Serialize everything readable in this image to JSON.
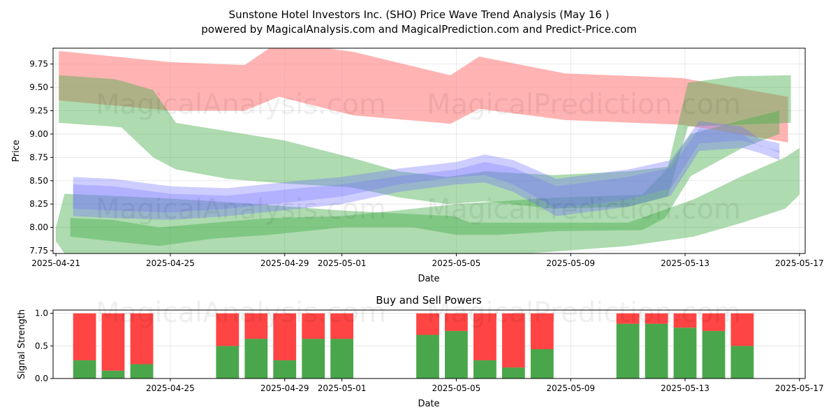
{
  "title_line1": "Sunstone Hotel Investors Inc. (SHO) Price Wave Trend Analysis (May 16 )",
  "title_line2": "powered by MagicalAnalysis.com and MagicalPrediction.com and Predict-Price.com",
  "watermarks": [
    "MagicalAnalysis.com",
    "MagicalPrediction.com"
  ],
  "colors": {
    "red": "#ff8080",
    "green": "#4caf50",
    "blue": "#7070ff",
    "bar_red": "#ff4444",
    "bar_green": "#4aa64a"
  },
  "chart_data": [
    {
      "type": "area",
      "title": "",
      "xlabel": "Date",
      "ylabel": "Price",
      "ylim": [
        7.72,
        9.92
      ],
      "xlim": [
        "2025-04-21",
        "2025-05-17"
      ],
      "yticks": [
        "7.75",
        "8.00",
        "8.25",
        "8.50",
        "8.75",
        "9.00",
        "9.25",
        "9.50",
        "9.75"
      ],
      "xticks": [
        "2025-04-21",
        "2025-04-25",
        "2025-04-29",
        "2025-05-01",
        "2025-05-05",
        "2025-05-09",
        "2025-05-13",
        "2025-05-17"
      ],
      "grid": true,
      "series": [
        {
          "name": "red-band",
          "color": "red",
          "x": [
            0.1,
            4,
            6.6,
            7.8,
            10.4,
            13.8,
            14.8,
            17.8,
            21.9,
            25.6
          ],
          "upper": [
            9.89,
            9.77,
            9.74,
            9.99,
            9.88,
            9.63,
            9.83,
            9.65,
            9.6,
            9.4
          ],
          "lower": [
            9.36,
            9.25,
            9.25,
            9.4,
            9.2,
            9.11,
            9.27,
            9.15,
            9.1,
            8.91
          ]
        },
        {
          "name": "green-band-1",
          "color": "green",
          "x": [
            0.1,
            2.0,
            2.3,
            3.4,
            4.2,
            6.0,
            8.0,
            10.3,
            12.0,
            13.7,
            15.0,
            17.4,
            20.0,
            21.4,
            22.1,
            23.8,
            25.7
          ],
          "upper": [
            9.63,
            9.59,
            9.57,
            9.47,
            9.12,
            9.03,
            8.93,
            8.75,
            8.6,
            8.54,
            8.6,
            8.56,
            8.6,
            8.65,
            9.55,
            9.62,
            9.63
          ],
          "lower": [
            9.12,
            9.08,
            9.07,
            8.75,
            8.62,
            8.52,
            8.47,
            8.43,
            8.32,
            8.25,
            8.28,
            8.2,
            8.22,
            8.33,
            9.08,
            9.1,
            9.12
          ]
        },
        {
          "name": "green-band-2",
          "color": "green",
          "x": [
            0.5,
            2.0,
            3.6,
            5.5,
            7.5,
            10.0,
            12.5,
            14.0,
            15.5,
            17.6,
            20.5,
            21.3,
            22.2,
            24.0,
            25.3
          ],
          "upper": [
            8.1,
            8.08,
            8.0,
            8.05,
            8.1,
            8.12,
            8.2,
            8.25,
            8.28,
            8.32,
            8.35,
            8.6,
            9.0,
            9.15,
            9.25
          ],
          "lower": [
            7.9,
            7.85,
            7.8,
            7.88,
            7.92,
            8.0,
            8.0,
            7.92,
            7.92,
            7.96,
            7.97,
            8.1,
            8.55,
            8.85,
            9.0
          ]
        },
        {
          "name": "green-band-3",
          "color": "green",
          "x": [
            0.0,
            0.3,
            2.5,
            4.5,
            7.0,
            10.0,
            13.9,
            14.5,
            16.5,
            20.0,
            22.3,
            24.0,
            25.5,
            26.0
          ],
          "upper": [
            8.0,
            8.36,
            8.33,
            8.3,
            8.25,
            8.18,
            8.12,
            8.05,
            8.05,
            8.05,
            8.3,
            8.55,
            8.75,
            8.85
          ],
          "lower": [
            7.85,
            7.72,
            7.72,
            7.72,
            7.72,
            7.72,
            7.72,
            7.72,
            7.72,
            7.8,
            7.9,
            8.05,
            8.2,
            8.35
          ]
        },
        {
          "name": "blue-band",
          "color": "blue",
          "x": [
            0.6,
            2.0,
            4.0,
            6.0,
            8.5,
            10.0,
            12.0,
            14.0,
            15.0,
            16.0,
            17.5,
            20.0,
            21.5,
            22.5,
            24.0,
            24.6,
            25.3
          ],
          "upper": [
            8.54,
            8.52,
            8.44,
            8.42,
            8.5,
            8.54,
            8.63,
            8.7,
            8.78,
            8.72,
            8.52,
            8.62,
            8.72,
            9.14,
            9.08,
            8.95,
            8.9
          ],
          "lower": [
            8.12,
            8.1,
            8.08,
            8.12,
            8.2,
            8.25,
            8.38,
            8.46,
            8.48,
            8.38,
            8.12,
            8.22,
            8.34,
            8.82,
            8.85,
            8.8,
            8.72
          ]
        }
      ]
    },
    {
      "type": "bar",
      "title": "Buy and Sell Powers",
      "xlabel": "Date",
      "ylabel": "Signal Strength",
      "ylim": [
        0,
        1.05
      ],
      "yticks": [
        "0.0",
        "0.5",
        "1.0"
      ],
      "xticks": [
        "2025-04-25",
        "2025-04-29",
        "2025-05-01",
        "2025-05-05",
        "2025-05-09",
        "2025-05-13",
        "2025-05-17"
      ],
      "dates": [
        "2025-04-22",
        "2025-04-23",
        "2025-04-24",
        "2025-04-27",
        "2025-04-28",
        "2025-04-29",
        "2025-04-30",
        "2025-05-01",
        "2025-05-04",
        "2025-05-05",
        "2025-05-06",
        "2025-05-07",
        "2025-05-08",
        "2025-05-11",
        "2025-05-12",
        "2025-05-13",
        "2025-05-14",
        "2025-05-15"
      ],
      "x": [
        1,
        2,
        3,
        6,
        7,
        8,
        9,
        10,
        13,
        14,
        15,
        16,
        17,
        20,
        21,
        22,
        23,
        24
      ],
      "buy": [
        0.28,
        0.12,
        0.22,
        0.5,
        0.61,
        0.28,
        0.61,
        0.61,
        0.67,
        0.73,
        0.28,
        0.17,
        0.45,
        0.84,
        0.84,
        0.78,
        0.73,
        0.5
      ],
      "sell": [
        0.72,
        0.88,
        0.78,
        0.5,
        0.39,
        0.72,
        0.39,
        0.39,
        0.33,
        0.27,
        0.72,
        0.83,
        0.55,
        0.16,
        0.16,
        0.22,
        0.27,
        0.5
      ],
      "grid": true
    }
  ]
}
